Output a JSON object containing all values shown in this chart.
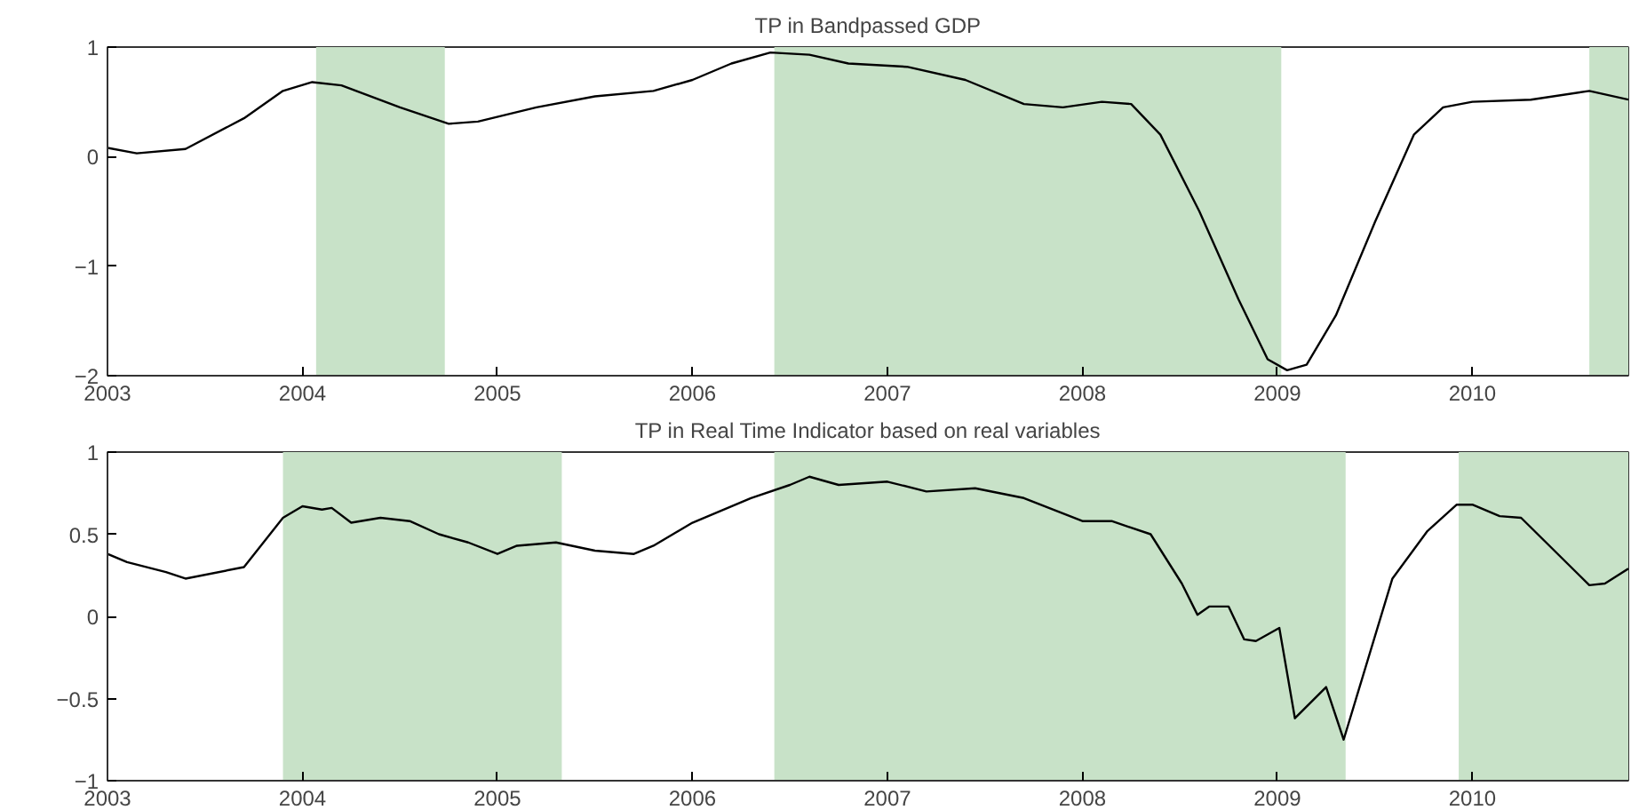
{
  "chart_data": [
    {
      "type": "line",
      "title": "TP in Bandpassed GDP",
      "xlim": [
        2003,
        2010.8
      ],
      "xticks": [
        2003,
        2004,
        2005,
        2006,
        2007,
        2008,
        2009,
        2010
      ],
      "ylim": [
        -2,
        1
      ],
      "yticks": [
        -2,
        -1,
        0,
        1
      ],
      "grid": false,
      "line_style": "solid",
      "marker": "none",
      "bands": [
        {
          "axis": "x",
          "from": 2004.07,
          "to": 2004.73,
          "color": "#c8e2c8"
        },
        {
          "axis": "x",
          "from": 2006.42,
          "to": 2009.02,
          "color": "#c8e2c8"
        },
        {
          "axis": "x",
          "from": 2010.6,
          "to": 2010.8,
          "color": "#c8e2c8"
        }
      ],
      "series": [
        {
          "color": "#000000",
          "x": [
            2003.0,
            2003.15,
            2003.4,
            2003.7,
            2003.9,
            2004.05,
            2004.2,
            2004.5,
            2004.75,
            2004.9,
            2005.2,
            2005.5,
            2005.8,
            2006.0,
            2006.2,
            2006.4,
            2006.6,
            2006.8,
            2007.1,
            2007.4,
            2007.7,
            2007.9,
            2008.1,
            2008.25,
            2008.4,
            2008.6,
            2008.8,
            2008.95,
            2009.05,
            2009.15,
            2009.3,
            2009.5,
            2009.7,
            2009.85,
            2010.0,
            2010.3,
            2010.6,
            2010.8
          ],
          "values": [
            0.08,
            0.03,
            0.07,
            0.35,
            0.6,
            0.68,
            0.65,
            0.45,
            0.3,
            0.32,
            0.45,
            0.55,
            0.6,
            0.7,
            0.85,
            0.95,
            0.93,
            0.85,
            0.82,
            0.7,
            0.48,
            0.45,
            0.5,
            0.48,
            0.2,
            -0.5,
            -1.3,
            -1.85,
            -1.95,
            -1.9,
            -1.45,
            -0.6,
            0.2,
            0.45,
            0.5,
            0.52,
            0.6,
            0.52
          ]
        }
      ]
    },
    {
      "type": "line",
      "title": "TP in Real Time Indicator based on real variables",
      "xlim": [
        2003,
        2010.8
      ],
      "xticks": [
        2003,
        2004,
        2005,
        2006,
        2007,
        2008,
        2009,
        2010
      ],
      "ylim": [
        -1,
        1
      ],
      "yticks": [
        -1,
        -0.5,
        0,
        0.5,
        1
      ],
      "grid": false,
      "line_style": "solid",
      "marker": "none",
      "bands": [
        {
          "axis": "x",
          "from": 2003.9,
          "to": 2005.33,
          "color": "#c8e2c8"
        },
        {
          "axis": "x",
          "from": 2006.42,
          "to": 2009.35,
          "color": "#c8e2c8"
        },
        {
          "axis": "x",
          "from": 2009.93,
          "to": 2010.8,
          "color": "#c8e2c8"
        }
      ],
      "series": [
        {
          "color": "#000000",
          "x": [
            2003.0,
            2003.1,
            2003.3,
            2003.4,
            2003.7,
            2003.9,
            2004.0,
            2004.1,
            2004.15,
            2004.25,
            2004.4,
            2004.55,
            2004.7,
            2004.85,
            2005.0,
            2005.1,
            2005.3,
            2005.5,
            2005.7,
            2005.8,
            2006.0,
            2006.3,
            2006.5,
            2006.6,
            2006.75,
            2007.0,
            2007.2,
            2007.45,
            2007.7,
            2008.0,
            2008.15,
            2008.35,
            2008.51,
            2008.59,
            2008.65,
            2008.75,
            2008.83,
            2008.89,
            2009.01,
            2009.09,
            2009.25,
            2009.34,
            2009.59,
            2009.77,
            2009.92,
            2010.0,
            2010.14,
            2010.25,
            2010.6,
            2010.68,
            2010.8
          ],
          "values": [
            0.38,
            0.33,
            0.27,
            0.23,
            0.3,
            0.6,
            0.67,
            0.65,
            0.66,
            0.57,
            0.6,
            0.58,
            0.5,
            0.45,
            0.38,
            0.43,
            0.45,
            0.4,
            0.38,
            0.43,
            0.57,
            0.72,
            0.8,
            0.85,
            0.8,
            0.82,
            0.76,
            0.78,
            0.72,
            0.58,
            0.58,
            0.5,
            0.2,
            0.01,
            0.06,
            0.06,
            -0.14,
            -0.15,
            -0.07,
            -0.62,
            -0.43,
            -0.75,
            0.23,
            0.52,
            0.68,
            0.68,
            0.61,
            0.6,
            0.19,
            0.2,
            0.29
          ]
        }
      ]
    }
  ]
}
